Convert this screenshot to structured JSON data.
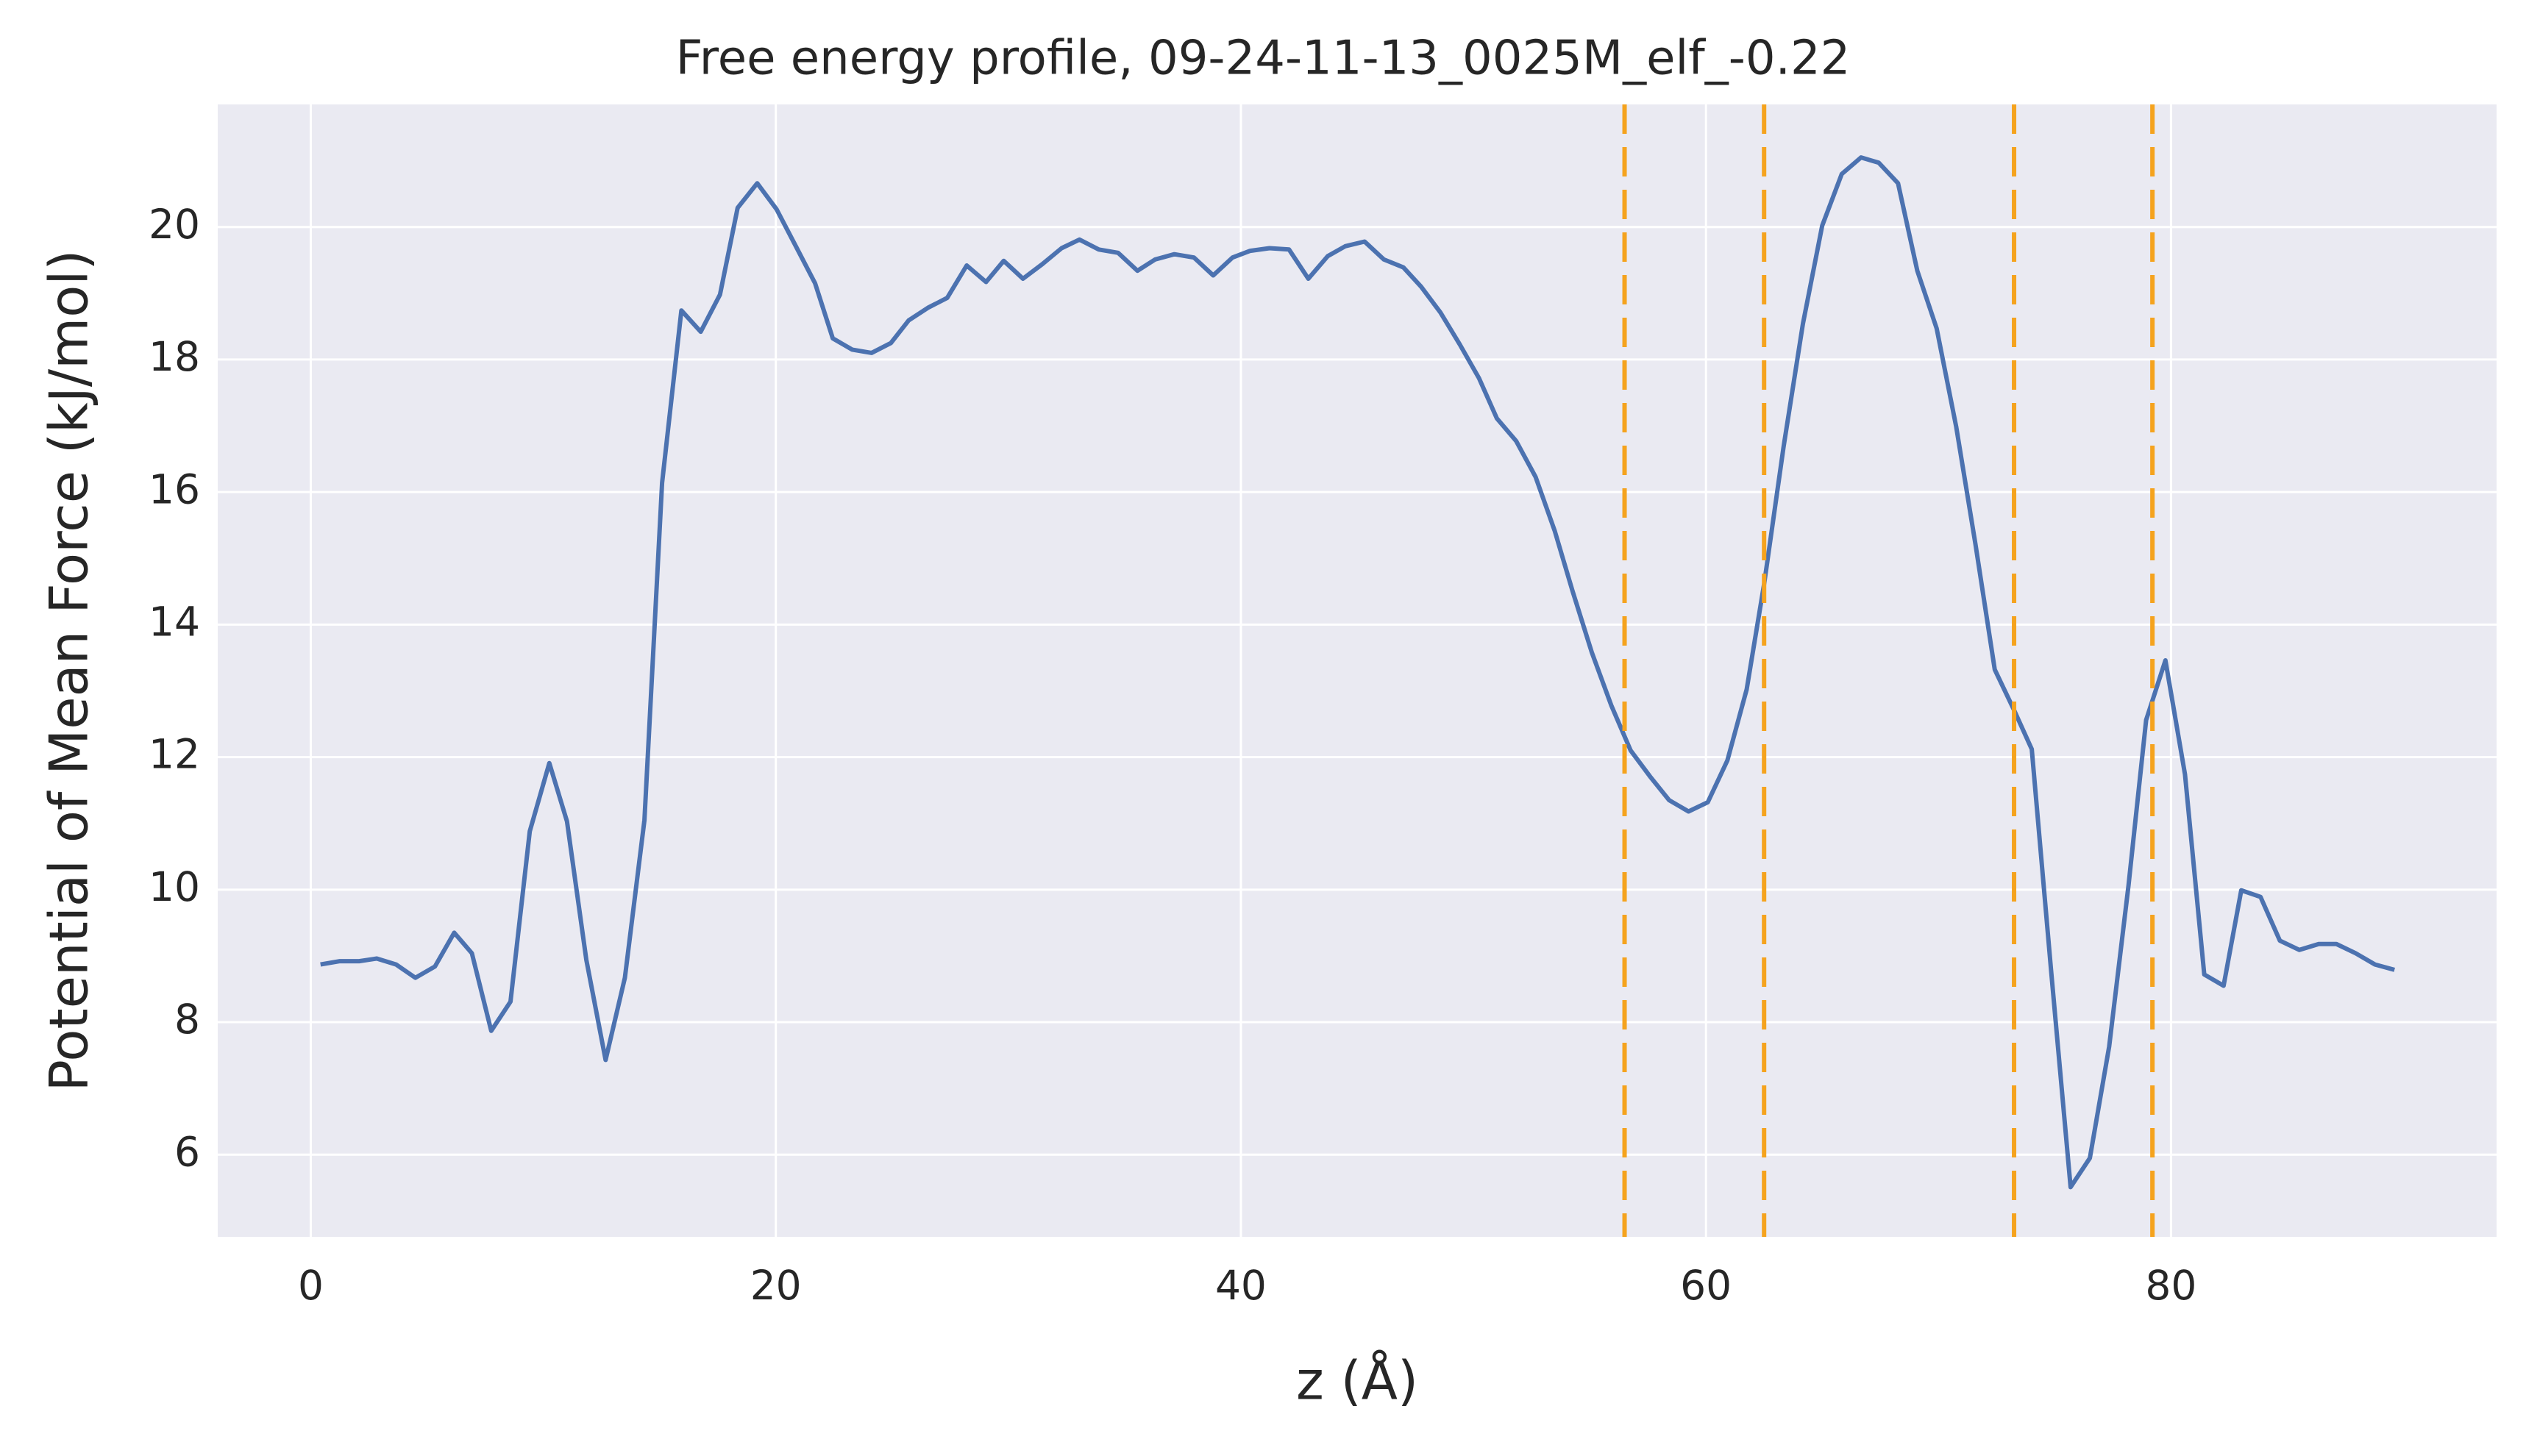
{
  "chart_data": {
    "type": "line",
    "title": "Free energy profile, 09-24-11-13_0025M_elf_-0.22",
    "xlabel": "z (Å)",
    "ylabel": "Potential of Mean Force (kJ/mol)",
    "x": [
      0.42,
      1.25,
      2.08,
      2.84,
      3.67,
      4.5,
      5.34,
      6.17,
      6.93,
      7.76,
      8.59,
      9.42,
      10.26,
      11.02,
      11.85,
      12.68,
      13.51,
      14.35,
      15.11,
      15.94,
      16.77,
      17.6,
      18.36,
      19.2,
      20.03,
      20.86,
      21.69,
      22.45,
      23.28,
      24.12,
      24.95,
      25.71,
      26.54,
      27.37,
      28.21,
      29.04,
      29.8,
      30.63,
      31.46,
      32.29,
      33.06,
      33.89,
      34.72,
      35.55,
      36.31,
      37.14,
      37.98,
      38.81,
      39.64,
      40.4,
      41.23,
      42.07,
      42.9,
      43.73,
      44.49,
      45.32,
      46.15,
      46.99,
      47.75,
      48.58,
      49.41,
      50.24,
      51.01,
      51.84,
      52.67,
      53.5,
      54.26,
      55.09,
      55.93,
      56.76,
      57.59,
      58.42,
      59.25,
      60.08,
      60.92,
      61.75,
      62.51,
      63.34,
      64.17,
      65.0,
      65.84,
      66.67,
      67.43,
      68.26,
      69.09,
      69.92,
      70.76,
      71.59,
      72.42,
      73.25,
      74.01,
      74.84,
      75.68,
      76.51,
      77.34,
      78.17,
      78.93,
      79.76,
      80.6,
      81.43,
      82.26,
      83.02,
      83.85,
      84.68,
      85.52,
      86.35,
      87.11,
      87.94,
      88.77,
      89.61
    ],
    "series": [
      {
        "color": "#4c72b0",
        "values": [
          8.87,
          8.92,
          8.92,
          8.96,
          8.87,
          8.67,
          8.84,
          9.35,
          9.04,
          7.87,
          8.31,
          10.88,
          11.91,
          11.03,
          8.94,
          7.43,
          8.67,
          11.05,
          16.14,
          18.74,
          18.42,
          18.98,
          20.29,
          20.66,
          20.27,
          19.71,
          19.15,
          18.32,
          18.15,
          18.1,
          18.25,
          18.59,
          18.78,
          18.93,
          19.42,
          19.17,
          19.49,
          19.22,
          19.44,
          19.68,
          19.81,
          19.66,
          19.61,
          19.34,
          19.51,
          19.59,
          19.54,
          19.27,
          19.54,
          19.64,
          19.68,
          19.66,
          19.22,
          19.56,
          19.71,
          19.78,
          19.51,
          19.39,
          19.1,
          18.71,
          18.23,
          17.72,
          17.11,
          16.77,
          16.23,
          15.41,
          14.51,
          13.58,
          12.78,
          12.1,
          11.71,
          11.35,
          11.18,
          11.32,
          11.95,
          13.02,
          14.63,
          16.69,
          18.54,
          20.02,
          20.8,
          21.05,
          20.97,
          20.66,
          19.34,
          18.47,
          16.99,
          15.21,
          13.32,
          12.71,
          12.12,
          8.79,
          5.51,
          5.95,
          7.63,
          10.06,
          12.56,
          13.46,
          11.74,
          8.72,
          8.55,
          9.99,
          9.89,
          9.23,
          9.09,
          9.18,
          9.18,
          9.04,
          8.87,
          8.79
        ]
      }
    ],
    "vlines": [
      56.5,
      62.5,
      73.25,
      79.2
    ],
    "vline_color": "#f5a31e",
    "xlim": [
      -4.0,
      94.0
    ],
    "xticks": [
      0,
      20,
      40,
      60,
      80
    ],
    "ylim": [
      4.76,
      21.85
    ],
    "yticks": [
      6,
      8,
      10,
      12,
      14,
      16,
      18,
      20
    ],
    "grid": true
  }
}
